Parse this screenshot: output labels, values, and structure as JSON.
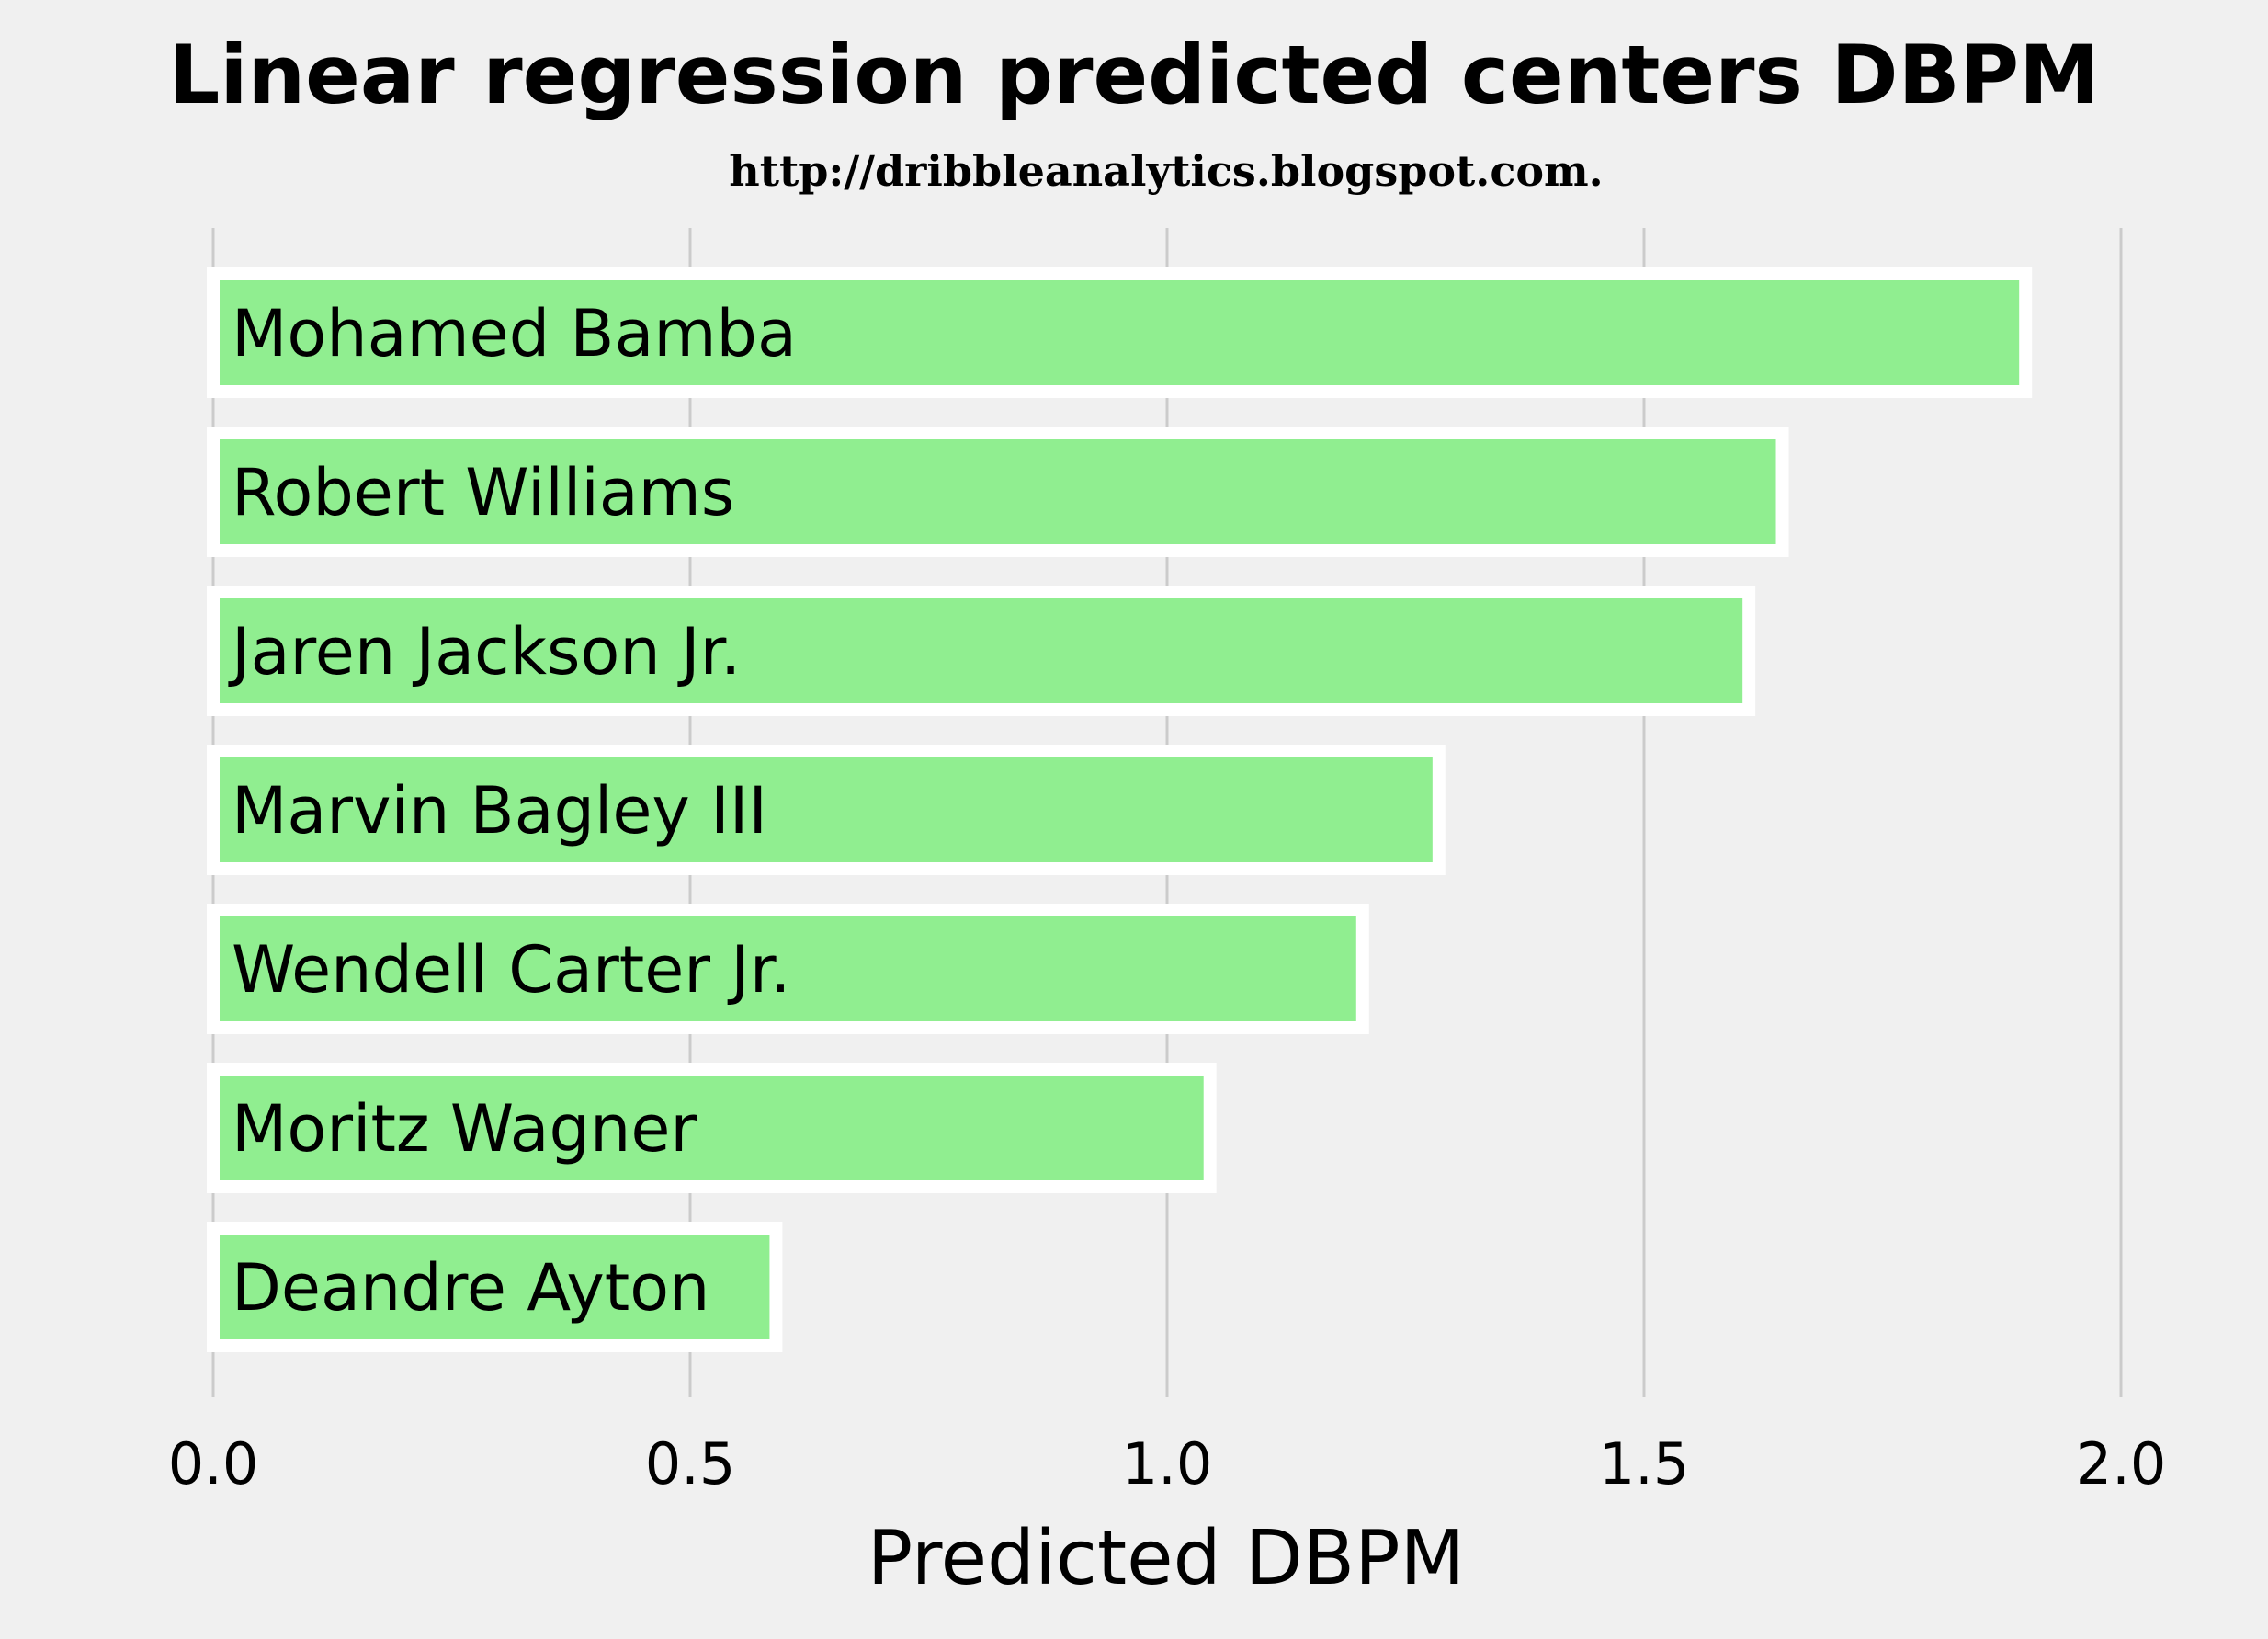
{
  "chart_data": {
    "type": "bar",
    "orientation": "horizontal",
    "title": "Linear regression predicted centers DBPM",
    "subtitle": "http://dribbleanalytics.blogspot.com.",
    "xlabel": "Predicted DBPM",
    "ylabel": "",
    "xlim": [
      0,
      2.1
    ],
    "xticks": [
      "0.0",
      "0.5",
      "1.0",
      "1.5",
      "2.0"
    ],
    "grid": "vertical",
    "bar_color": "#90ee90",
    "bar_edge_color": "#ffffff",
    "background_color": "#f0f0f0",
    "categories": [
      "Mohamed Bamba",
      "Robert Williams",
      "Jaren Jackson Jr.",
      "Marvin Bagley III",
      "Wendell Carter Jr.",
      "Moritz Wagner",
      "Deandre Ayton"
    ],
    "values": [
      1.9,
      1.645,
      1.61,
      1.285,
      1.205,
      1.045,
      0.59
    ]
  }
}
